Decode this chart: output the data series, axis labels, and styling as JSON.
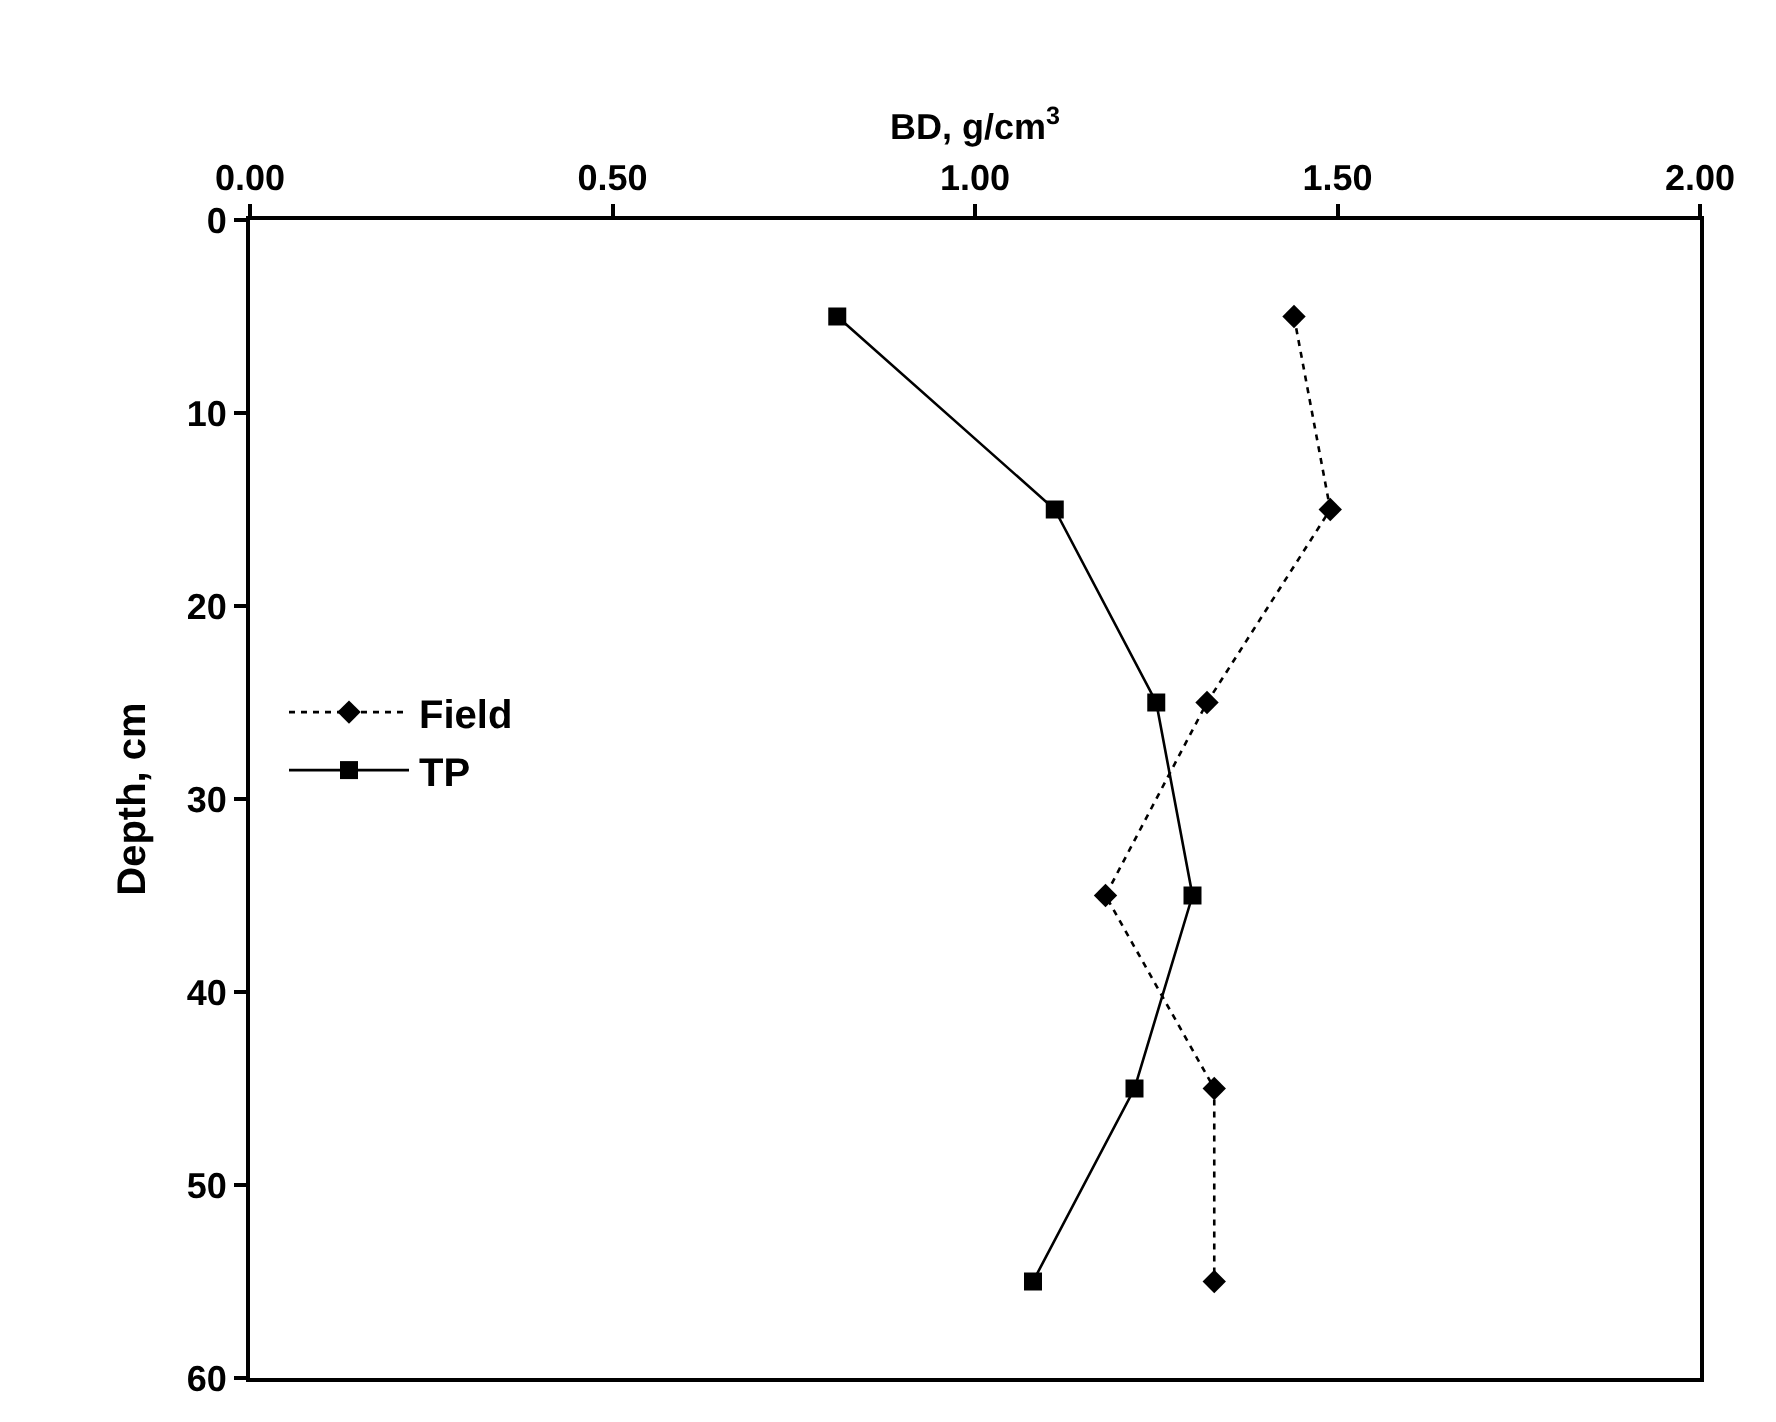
{
  "chart_data": {
    "type": "line",
    "xlabel": "BD, g/cm$^{3}$",
    "ylabel": "Depth, cm",
    "xlim": [
      0,
      2
    ],
    "xticks": [
      {
        "value": 0,
        "label": "0.00"
      },
      {
        "value": 0.5,
        "label": "0.50"
      },
      {
        "value": 1,
        "label": "1.00"
      },
      {
        "value": 1.5,
        "label": "1.50"
      },
      {
        "value": 2,
        "label": "2.00"
      }
    ],
    "ylim": [
      60,
      0
    ],
    "yticks": [
      0,
      10,
      20,
      30,
      40,
      50,
      60
    ],
    "legend": "left",
    "series": [
      {
        "name": "Field",
        "color": "#000000",
        "marker": "diamond",
        "line_style": "dotted",
        "x": [
          1.44,
          1.49,
          1.32,
          1.18,
          1.33,
          1.33
        ],
        "values": [
          5,
          15,
          25,
          35,
          45,
          55
        ]
      },
      {
        "name": "TP",
        "color": "#000000",
        "marker": "square",
        "line_style": "solid",
        "x": [
          0.81,
          1.11,
          1.25,
          1.3,
          1.22,
          1.08
        ],
        "values": [
          5,
          15,
          25,
          35,
          45,
          55
        ]
      }
    ]
  }
}
